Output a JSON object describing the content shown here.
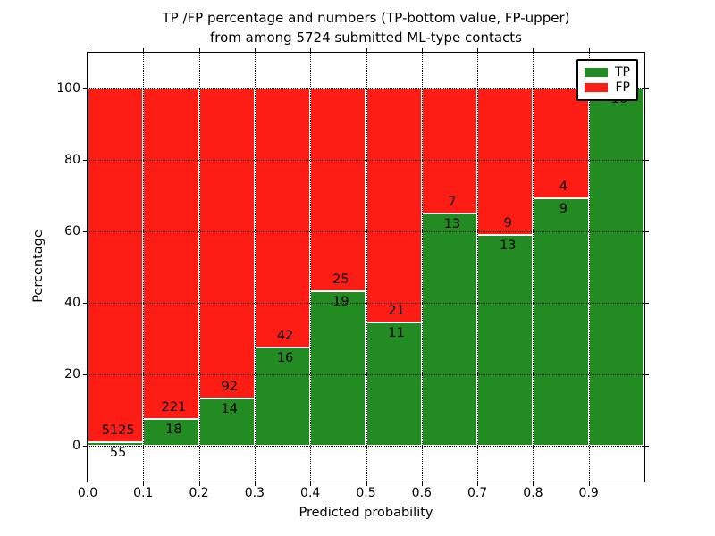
{
  "title": {
    "line1": "TP /FP percentage and numbers (TP-bottom value, FP-upper)",
    "line2": "from among 5724 submitted ML-type contacts"
  },
  "chart_data": {
    "type": "bar",
    "stacked": true,
    "title": "TP /FP percentage and numbers (TP-bottom value, FP-upper) from among 5724 submitted ML-type contacts",
    "xlabel": "Predicted probability",
    "ylabel": "Percentage",
    "xlim": [
      0.0,
      1.0
    ],
    "ylim": [
      -10,
      110
    ],
    "grid": "dotted",
    "legend_position": "upper right",
    "bin_width": 0.1,
    "total_contacts": 5724,
    "bins": [
      "0.0-0.1",
      "0.1-0.2",
      "0.2-0.3",
      "0.3-0.4",
      "0.4-0.5",
      "0.5-0.6",
      "0.6-0.7",
      "0.7-0.8",
      "0.8-0.9",
      "0.9-1.0"
    ],
    "series": [
      {
        "name": "TP",
        "color": "#228b22",
        "counts": [
          55,
          18,
          14,
          16,
          19,
          11,
          13,
          13,
          9,
          10
        ]
      },
      {
        "name": "FP",
        "color": "#fd1d14",
        "counts": [
          5125,
          221,
          92,
          42,
          25,
          21,
          7,
          9,
          4,
          0
        ]
      }
    ],
    "tp_pct": [
      1.06,
      7.53,
      13.21,
      27.59,
      43.18,
      34.38,
      65.0,
      59.09,
      69.23,
      100.0
    ],
    "annotations": {
      "tp": [
        "55",
        "18",
        "14",
        "16",
        "19",
        "11",
        "13",
        "13",
        "9",
        "10"
      ],
      "fp": [
        "5125",
        "221",
        "92",
        "42",
        "25",
        "21",
        "7",
        "9",
        "4",
        ""
      ]
    },
    "x_tick_vals": [
      0,
      0.1,
      0.2,
      0.3,
      0.4,
      0.5,
      0.6,
      0.7,
      0.8,
      0.9
    ],
    "x_ticks": [
      "0.0",
      "0.1",
      "0.2",
      "0.3",
      "0.4",
      "0.5",
      "0.6",
      "0.7",
      "0.8",
      "0.9"
    ],
    "y_tick_vals": [
      0,
      20,
      40,
      60,
      80,
      100
    ],
    "y_ticks": [
      "0",
      "20",
      "40",
      "60",
      "80",
      "100"
    ]
  }
}
